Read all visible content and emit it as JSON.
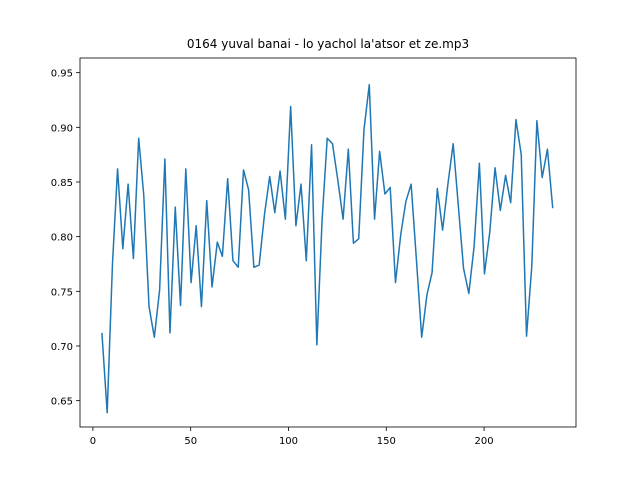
{
  "chart_data": {
    "type": "line",
    "title": "0164 yuval banai - lo yachol la'atsor et ze.mp3",
    "x": [
      4.6,
      7.3,
      10.0,
      12.6,
      15.3,
      18.0,
      20.7,
      23.4,
      26.0,
      28.7,
      31.4,
      34.1,
      36.8,
      39.4,
      42.1,
      44.8,
      47.5,
      50.2,
      52.8,
      55.5,
      58.2,
      60.9,
      63.6,
      66.2,
      68.9,
      71.6,
      74.3,
      77.0,
      79.6,
      82.3,
      85.0,
      87.7,
      90.4,
      93.0,
      95.7,
      98.4,
      101.1,
      103.8,
      106.4,
      109.1,
      111.8,
      114.5,
      117.2,
      119.8,
      122.5,
      125.2,
      127.9,
      130.6,
      133.2,
      135.9,
      138.6,
      141.3,
      144.0,
      146.6,
      149.3,
      152.0,
      154.7,
      157.4,
      160.0,
      162.7,
      165.4,
      168.1,
      170.8,
      173.4,
      176.1,
      178.8,
      181.5,
      184.2,
      186.8,
      189.5,
      192.2,
      194.9,
      197.6,
      200.2,
      202.9,
      205.6,
      208.3,
      211.0,
      213.6,
      216.3,
      219.0,
      221.7,
      224.4,
      227.0,
      229.7,
      232.4,
      235.1
    ],
    "series": [
      {
        "color": "#1f77b4",
        "values": [
          0.712,
          0.639,
          0.775,
          0.862,
          0.789,
          0.848,
          0.78,
          0.89,
          0.838,
          0.736,
          0.708,
          0.751,
          0.871,
          0.712,
          0.827,
          0.737,
          0.862,
          0.758,
          0.81,
          0.736,
          0.833,
          0.754,
          0.795,
          0.782,
          0.853,
          0.778,
          0.772,
          0.861,
          0.843,
          0.772,
          0.774,
          0.82,
          0.855,
          0.822,
          0.86,
          0.816,
          0.919,
          0.81,
          0.848,
          0.778,
          0.884,
          0.701,
          0.816,
          0.89,
          0.885,
          0.852,
          0.816,
          0.88,
          0.794,
          0.798,
          0.898,
          0.939,
          0.816,
          0.878,
          0.839,
          0.845,
          0.758,
          0.802,
          0.832,
          0.848,
          0.779,
          0.708,
          0.747,
          0.767,
          0.844,
          0.806,
          0.848,
          0.885,
          0.829,
          0.771,
          0.748,
          0.791,
          0.867,
          0.766,
          0.804,
          0.863,
          0.824,
          0.856,
          0.831,
          0.907,
          0.875,
          0.709,
          0.773,
          0.906,
          0.854,
          0.88,
          0.826
        ]
      }
    ],
    "xlim": [
      -6.6,
      247
    ],
    "xticks": [
      0,
      50,
      100,
      150,
      200
    ],
    "ylim": [
      0.6259,
      0.9634
    ],
    "yticks": [
      0.65,
      {
        "value": 0.7,
        "label": "0.70"
      },
      0.75,
      {
        "value": 0.8,
        "label": "0.80"
      },
      0.85,
      {
        "value": 0.9,
        "label": "0.90"
      },
      0.95
    ]
  }
}
